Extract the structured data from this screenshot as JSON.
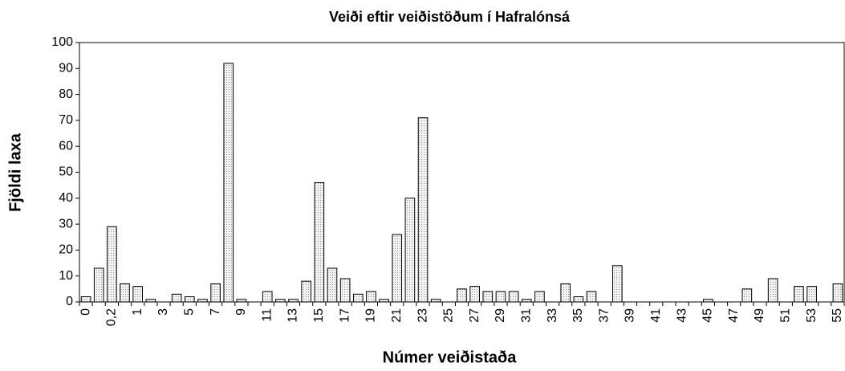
{
  "chart_data": {
    "type": "bar",
    "title": "Veiði eftir veiðistöðum í Hafralónsá",
    "x_label": "Númer veiðistaða",
    "y_label": "Fjöldi laxa",
    "categories": [
      "0",
      null,
      "0,2",
      null,
      "1",
      null,
      "3",
      null,
      "5",
      null,
      "7",
      null,
      "9",
      null,
      "11",
      null,
      "13",
      null,
      "15",
      null,
      "17",
      null,
      "19",
      null,
      "21",
      null,
      "23",
      null,
      "25",
      null,
      "27",
      null,
      "29",
      null,
      "31",
      null,
      "33",
      null,
      "35",
      null,
      "37",
      null,
      "39",
      null,
      "41",
      null,
      "43",
      null,
      "45",
      null,
      "47",
      null,
      "49",
      null,
      "51",
      null,
      "53",
      null,
      "55"
    ],
    "values": [
      2,
      13,
      29,
      7,
      6,
      1,
      0,
      3,
      2,
      1,
      7,
      92,
      1,
      0,
      4,
      1,
      1,
      8,
      46,
      13,
      9,
      3,
      4,
      1,
      26,
      40,
      71,
      1,
      0,
      5,
      6,
      4,
      4,
      4,
      1,
      4,
      0,
      7,
      2,
      4,
      0,
      14,
      0,
      0,
      0,
      0,
      0,
      0,
      1,
      0,
      0,
      5,
      0,
      9,
      0,
      6,
      6,
      0,
      7
    ],
    "color": "#d9d9d9",
    "ylim": [
      0,
      100
    ],
    "yticks": [
      0,
      10,
      20,
      30,
      40,
      50,
      60,
      70,
      80,
      90,
      100
    ]
  }
}
